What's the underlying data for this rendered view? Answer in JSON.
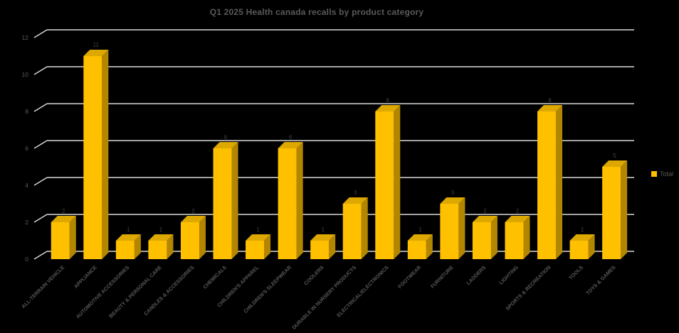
{
  "chart_data": {
    "type": "bar",
    "variant": "3d-column",
    "title": "Q1 2025 Health canada recalls by product category",
    "categories": [
      "ALL-TERRAIN VEHICLE",
      "APPLIANCE",
      "AUTOMOTIVE ACCESSORIES",
      "BEAUTY & PERSONAL CARE",
      "CANDLES & ACCESSORIES",
      "CHEMICALS",
      "CHILDREN'S APPAREL",
      "CHILDREN'S SLEEPWEAR",
      "COOLERS",
      "DURABLE IN NURSERY PRODUCTS",
      "ELECTRICAL/ELECTRONICS",
      "FOOTWEAR",
      "FURNITURE",
      "LADDERS",
      "LIGHTING",
      "SPORTS & RECREATION",
      "TOOLS",
      "TOYS & GAMES"
    ],
    "series": [
      {
        "name": "Total",
        "values": [
          2,
          11,
          1,
          1,
          2,
          6,
          1,
          6,
          1,
          3,
          8,
          1,
          3,
          2,
          2,
          8,
          1,
          5
        ]
      }
    ],
    "data_labels_shown": true,
    "xlabel": "",
    "ylabel": "",
    "ylim": [
      0,
      12
    ],
    "yticks": [
      0,
      2,
      4,
      6,
      8,
      10,
      12
    ],
    "grid": true,
    "legend_position": "right",
    "legend_entries": [
      "Total"
    ],
    "colors": {
      "bar_front": "#FFC000",
      "bar_top": "#DDA800",
      "bar_side": "#B38600",
      "gridline": "#D9D9D9",
      "axis_text": "#595959",
      "value_label": "#404040",
      "title_text": "#595959",
      "background": "#000000"
    }
  }
}
